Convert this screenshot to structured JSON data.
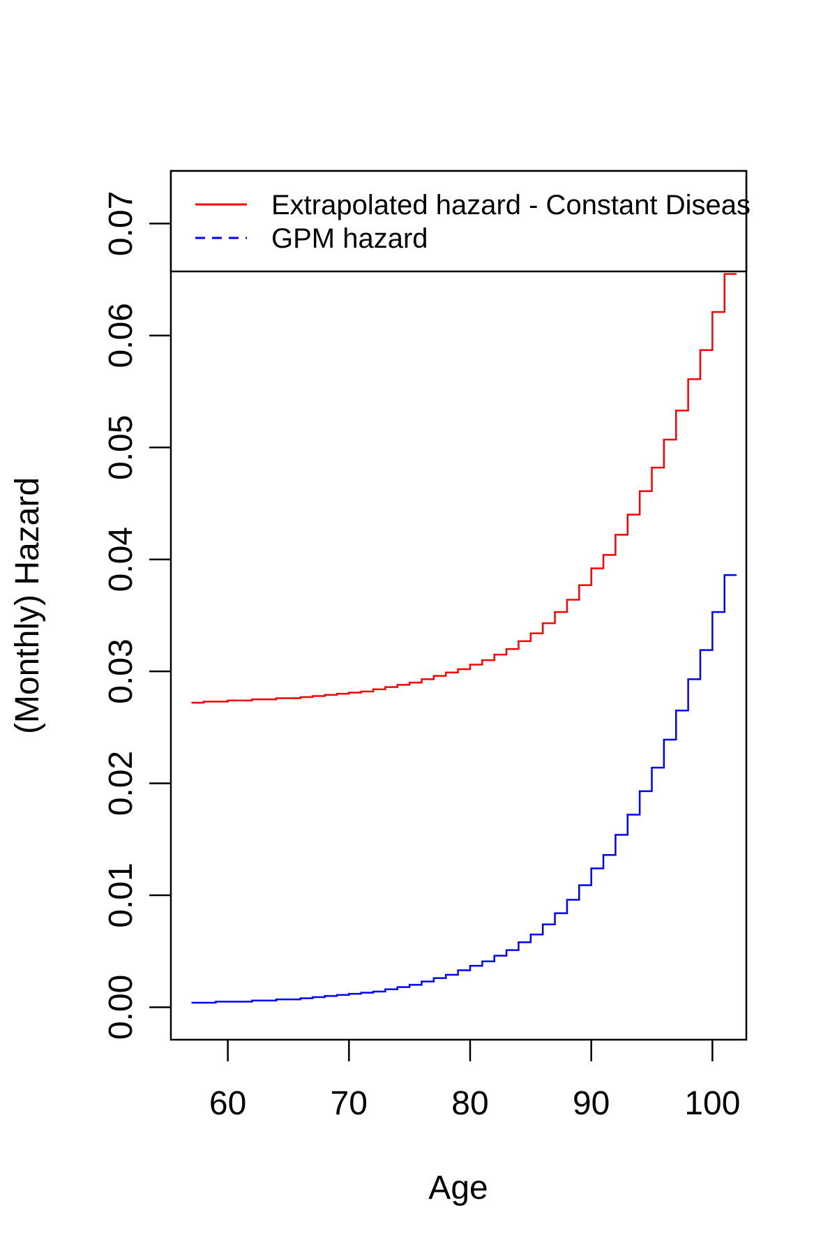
{
  "chart_data": {
    "type": "line",
    "step": true,
    "xlabel": "Age",
    "ylabel": "(Monthly) Hazard",
    "xlim": [
      55.3,
      102.8
    ],
    "ylim": [
      -0.0029,
      0.0747
    ],
    "x_ticks": [
      "60",
      "70",
      "80",
      "90",
      "100"
    ],
    "y_ticks": [
      "0.00",
      "0.01",
      "0.02",
      "0.03",
      "0.04",
      "0.05",
      "0.06",
      "0.07"
    ],
    "legend": {
      "position": "top",
      "entries": [
        {
          "label": "Extrapolated hazard - Constant Diseas",
          "color": "#ff0000",
          "style": "solid"
        },
        {
          "label": "GPM hazard",
          "color": "#0000ff",
          "style": "dashed"
        }
      ]
    },
    "x": [
      57,
      58,
      59,
      60,
      61,
      62,
      63,
      64,
      65,
      66,
      67,
      68,
      69,
      70,
      71,
      72,
      73,
      74,
      75,
      76,
      77,
      78,
      79,
      80,
      81,
      82,
      83,
      84,
      85,
      86,
      87,
      88,
      89,
      90,
      91,
      92,
      93,
      94,
      95,
      96,
      97,
      98,
      99,
      100,
      101
    ],
    "series": [
      {
        "color": "#ff0000",
        "values": [
          0.0272,
          0.0273,
          0.0273,
          0.0274,
          0.0274,
          0.0275,
          0.0275,
          0.0276,
          0.0276,
          0.0277,
          0.0278,
          0.0279,
          0.028,
          0.0281,
          0.0282,
          0.0284,
          0.0286,
          0.0288,
          0.029,
          0.0293,
          0.0296,
          0.0299,
          0.0302,
          0.0306,
          0.031,
          0.0315,
          0.032,
          0.0327,
          0.0334,
          0.0343,
          0.0353,
          0.0364,
          0.0377,
          0.0392,
          0.0404,
          0.0422,
          0.044,
          0.0461,
          0.0482,
          0.0507,
          0.0533,
          0.0561,
          0.0587,
          0.0621,
          0.0655
        ]
      },
      {
        "color": "#0000ff",
        "values": [
          0.0004,
          0.0004,
          0.0005,
          0.0005,
          0.0005,
          0.0006,
          0.0006,
          0.0007,
          0.0007,
          0.0008,
          0.0009,
          0.001,
          0.0011,
          0.0012,
          0.0013,
          0.0014,
          0.0016,
          0.0018,
          0.002,
          0.0023,
          0.0026,
          0.0029,
          0.0033,
          0.0037,
          0.0041,
          0.0046,
          0.0051,
          0.0058,
          0.0065,
          0.0074,
          0.0084,
          0.0096,
          0.0109,
          0.0124,
          0.0136,
          0.0154,
          0.0172,
          0.0193,
          0.0214,
          0.0239,
          0.0265,
          0.0293,
          0.0319,
          0.0353,
          0.0386
        ]
      }
    ]
  }
}
